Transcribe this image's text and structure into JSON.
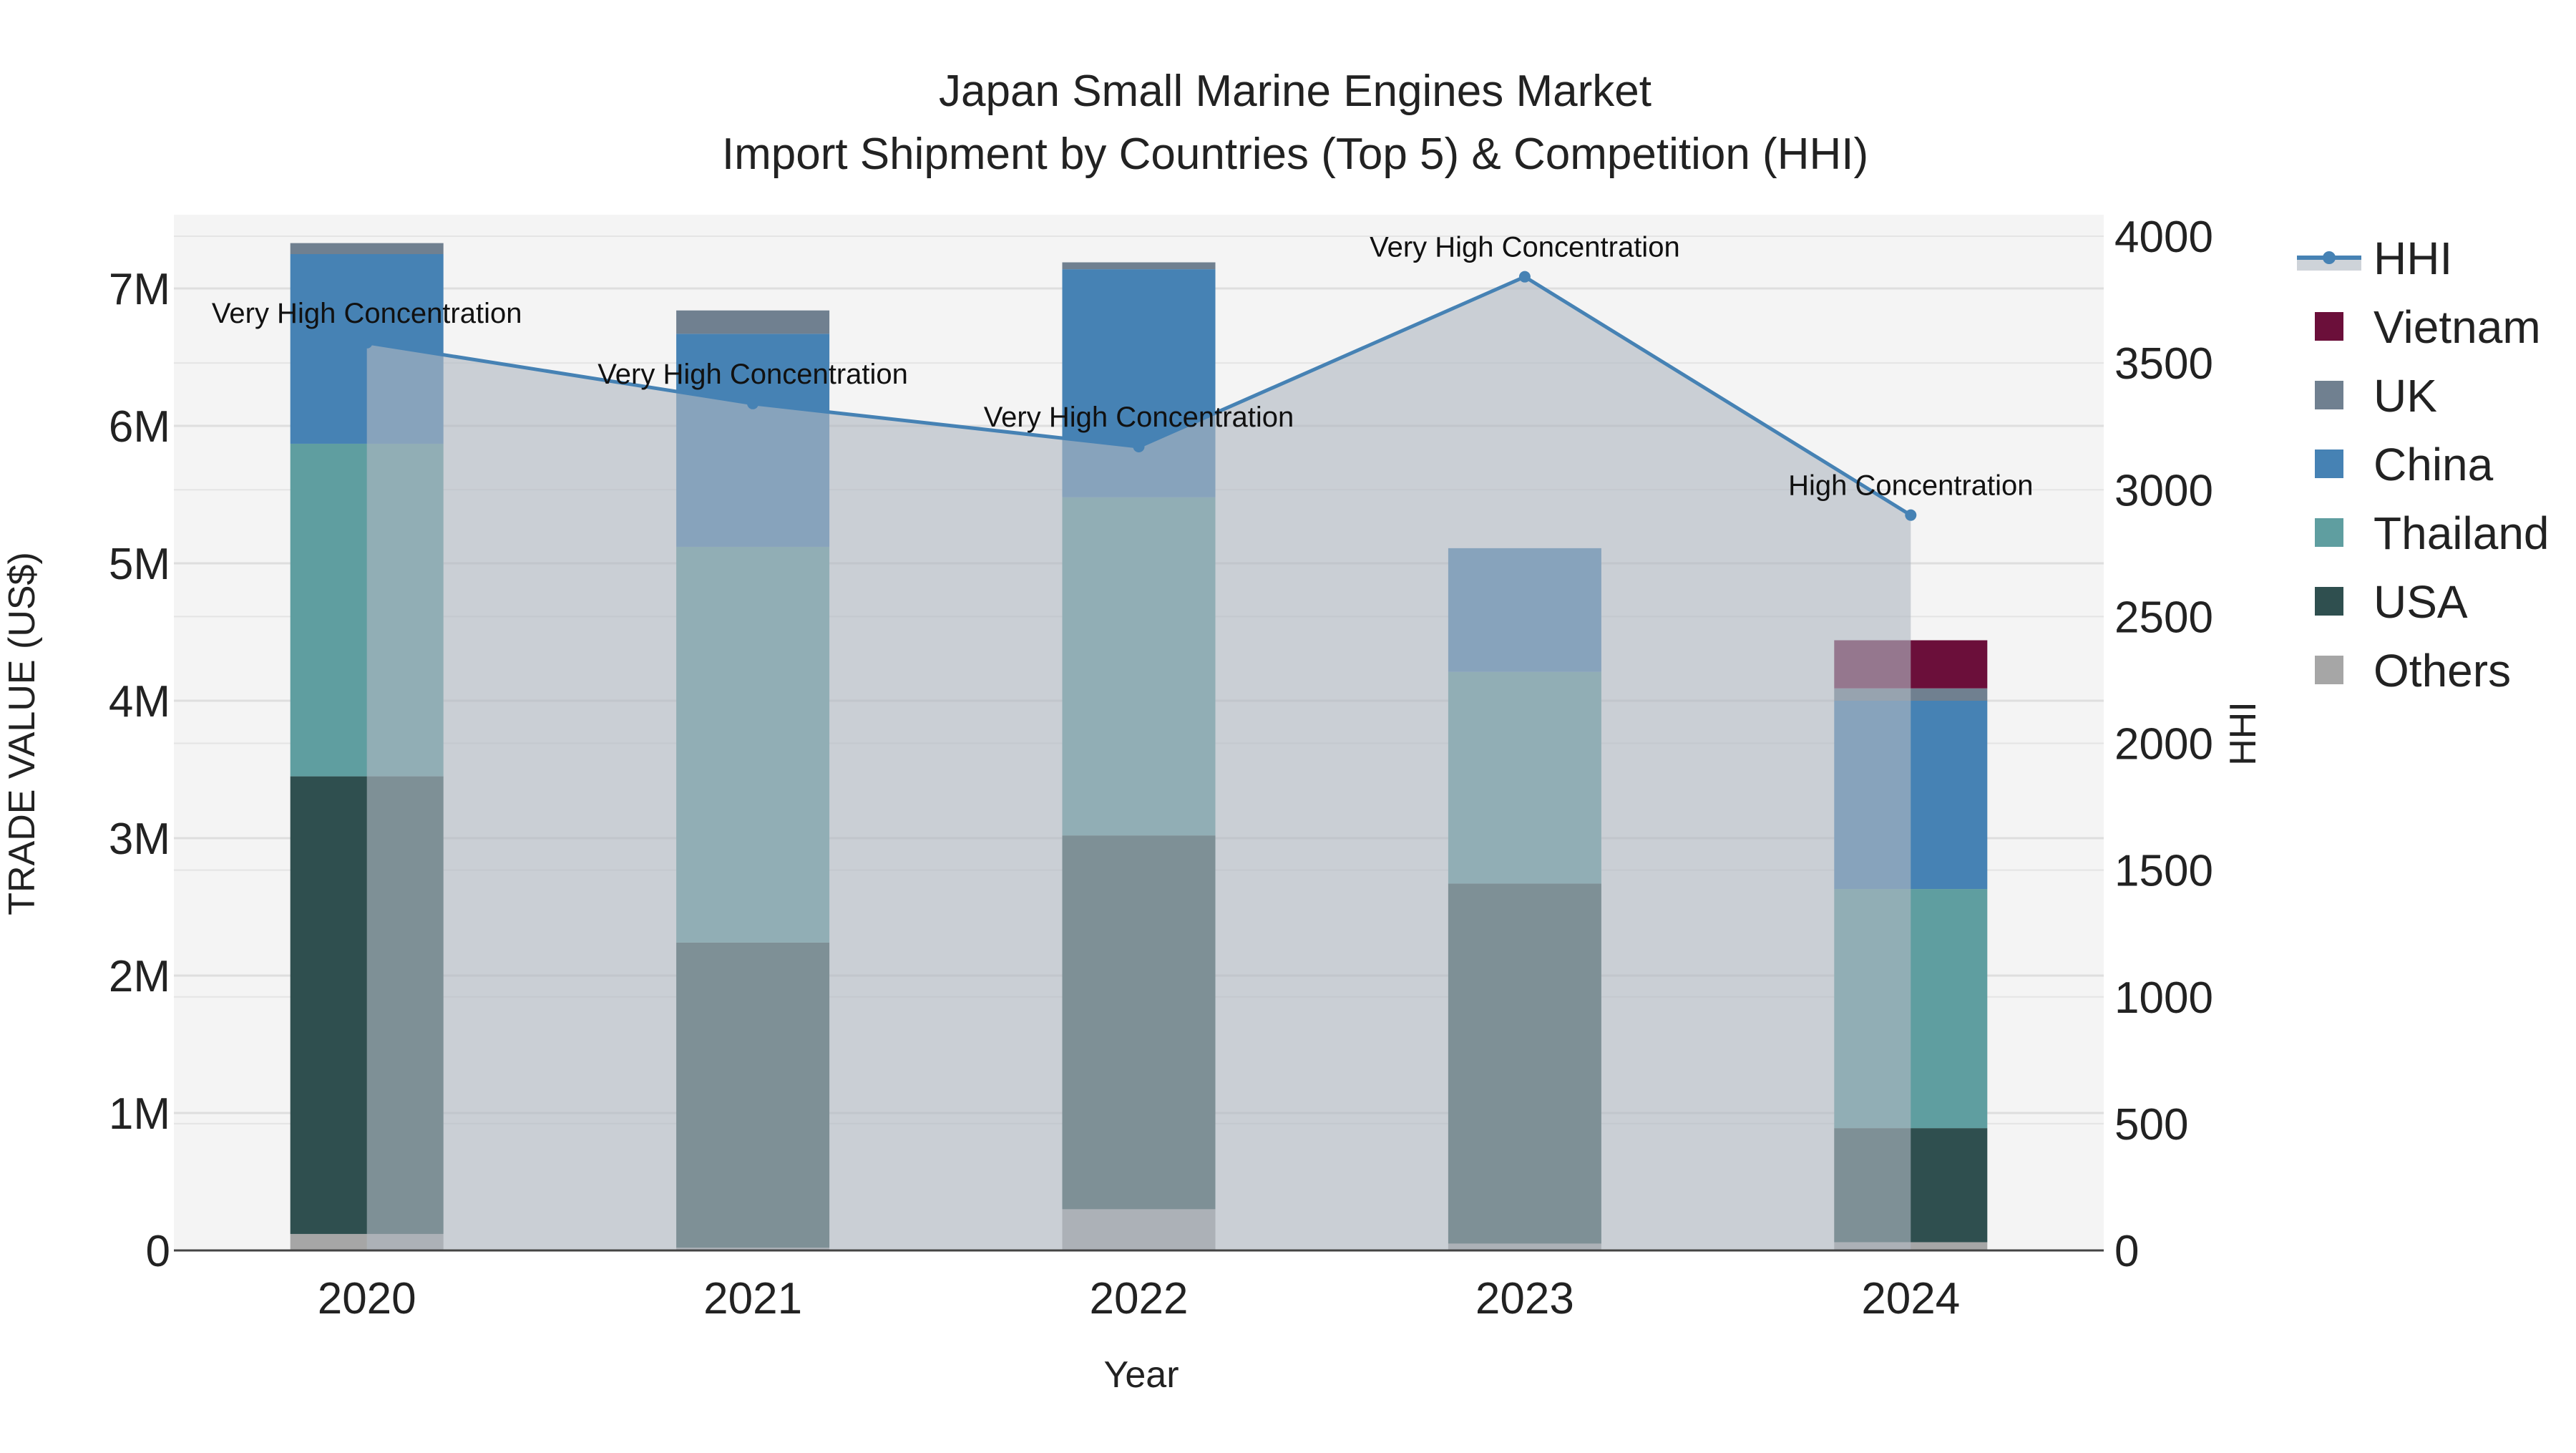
{
  "chart_data": {
    "type": "bar",
    "title_line1": "Japan Small Marine Engines Market",
    "title_line2": "Import Shipment by Countries (Top 5) & Competition (HHI)",
    "xlabel": "Year",
    "ylabel": "TRADE VALUE (US$)",
    "y2label": "HHI",
    "categories": [
      "2020",
      "2021",
      "2022",
      "2023",
      "2024"
    ],
    "ylim": [
      0,
      7500000
    ],
    "y_ticks": [
      0,
      1000000,
      2000000,
      3000000,
      4000000,
      5000000,
      6000000,
      7000000
    ],
    "y_tick_labels": [
      "0",
      "1M",
      "2M",
      "3M",
      "4M",
      "5M",
      "6M",
      "7M"
    ],
    "y2lim": [
      0,
      4050
    ],
    "y2_ticks": [
      0,
      500,
      1000,
      1500,
      2000,
      2500,
      3000,
      3500,
      4000
    ],
    "y2_tick_labels": [
      "0",
      "500",
      "1000",
      "1500",
      "2000",
      "2500",
      "3000",
      "3500",
      "4000"
    ],
    "series": [
      {
        "name": "Others",
        "color": "#a6a6a6",
        "values": [
          120000,
          20000,
          300000,
          50000,
          60000
        ]
      },
      {
        "name": "USA",
        "color": "#2f4f4f",
        "values": [
          3330000,
          2220000,
          2720000,
          2620000,
          830000
        ]
      },
      {
        "name": "Thailand",
        "color": "#5f9ea0",
        "values": [
          2420000,
          2880000,
          2460000,
          1540000,
          1740000
        ]
      },
      {
        "name": "China",
        "color": "#4682b4",
        "values": [
          1380000,
          1550000,
          1660000,
          900000,
          1370000
        ]
      },
      {
        "name": "UK",
        "color": "#708090",
        "values": [
          80000,
          170000,
          50000,
          0,
          90000
        ]
      },
      {
        "name": "Vietnam",
        "color": "#6b0f3a",
        "values": [
          0,
          0,
          0,
          0,
          350000
        ]
      }
    ],
    "hhi": {
      "name": "HHI",
      "color": "#4682b4",
      "values": [
        3580,
        3340,
        3170,
        3840,
        2900
      ],
      "labels": [
        "Very High Concentration",
        "Very High Concentration",
        "Very High Concentration",
        "Very High Concentration",
        "High Concentration"
      ]
    },
    "legend_order": [
      "HHI",
      "Vietnam",
      "UK",
      "China",
      "Thailand",
      "USA",
      "Others"
    ],
    "legend_position": "right"
  }
}
